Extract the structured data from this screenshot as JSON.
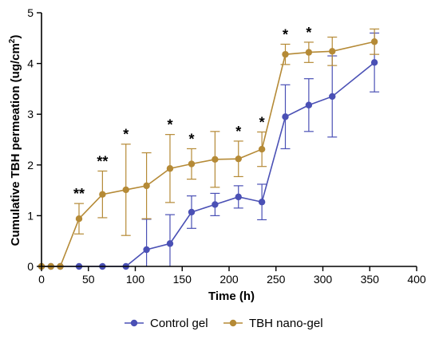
{
  "chart_data": {
    "type": "line",
    "title": "",
    "xlabel": "Time (h)",
    "ylabel_main": "Cumulative TBH permeation (ug/cm",
    "ylabel_sup": "2",
    "ylabel_tail": ")",
    "xlim": [
      0,
      400
    ],
    "ylim": [
      0,
      5
    ],
    "x_ticks": [
      0,
      50,
      100,
      150,
      200,
      250,
      300,
      350,
      400
    ],
    "y_ticks": [
      0,
      1,
      2,
      3,
      4,
      5
    ],
    "grid": false,
    "legend_position": "bottom",
    "series": [
      {
        "name": "Control gel",
        "color": "#4a50b5",
        "x": [
          0,
          10,
          20,
          40,
          65,
          90,
          112,
          137,
          160,
          185,
          210,
          235,
          260,
          285,
          310,
          355
        ],
        "y": [
          0,
          0,
          0,
          0,
          0,
          0,
          0.33,
          0.45,
          1.07,
          1.22,
          1.37,
          1.27,
          2.95,
          3.18,
          3.35,
          4.02
        ],
        "err": [
          0,
          0,
          0,
          0,
          0,
          0,
          0.6,
          0.57,
          0.32,
          0.22,
          0.22,
          0.35,
          0.63,
          0.52,
          0.8,
          0.58
        ]
      },
      {
        "name": "TBH nano-gel",
        "color": "#b58a36",
        "x": [
          0,
          10,
          20,
          40,
          65,
          90,
          112,
          137,
          160,
          185,
          210,
          235,
          260,
          285,
          310,
          355
        ],
        "y": [
          0,
          0,
          0,
          0.94,
          1.42,
          1.51,
          1.59,
          1.93,
          2.02,
          2.11,
          2.12,
          2.31,
          4.18,
          4.22,
          4.24,
          4.43
        ],
        "err": [
          0,
          0,
          0,
          0.3,
          0.46,
          0.9,
          0.65,
          0.67,
          0.3,
          0.55,
          0.35,
          0.34,
          0.2,
          0.2,
          0.28,
          0.25
        ]
      }
    ],
    "annotations": [
      {
        "x": 40,
        "text": "**"
      },
      {
        "x": 65,
        "text": "**"
      },
      {
        "x": 90,
        "text": "*"
      },
      {
        "x": 137,
        "text": "*"
      },
      {
        "x": 160,
        "text": "*"
      },
      {
        "x": 210,
        "text": "*"
      },
      {
        "x": 235,
        "text": "*"
      },
      {
        "x": 260,
        "text": "*"
      },
      {
        "x": 285,
        "text": "*"
      }
    ]
  }
}
